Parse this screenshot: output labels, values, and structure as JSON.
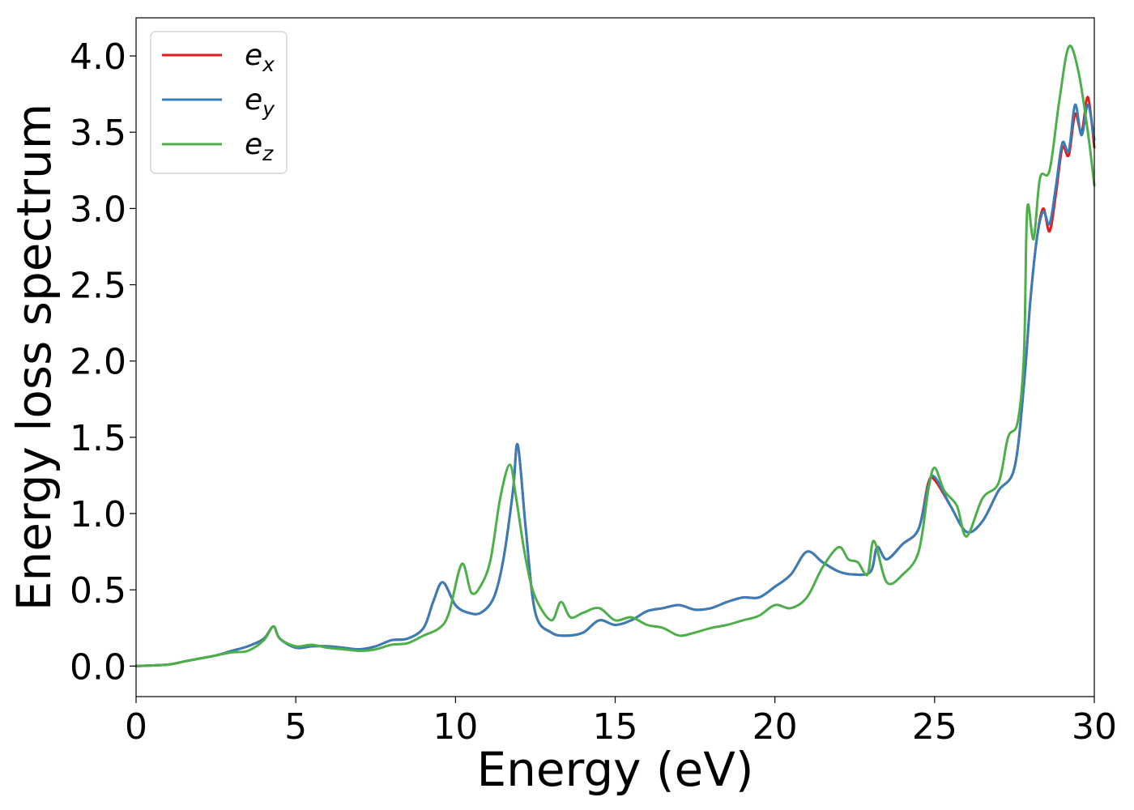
{
  "chart_data": {
    "type": "line",
    "xlabel": "Energy (eV)",
    "ylabel": "Energy loss spectrum",
    "xlim": [
      0,
      30
    ],
    "ylim": [
      -0.2,
      4.25
    ],
    "xticks": [
      0,
      5,
      10,
      15,
      20,
      25,
      30
    ],
    "xtick_labels": [
      "0",
      "5",
      "10",
      "15",
      "20",
      "25",
      "30"
    ],
    "yticks": [
      0.0,
      0.5,
      1.0,
      1.5,
      2.0,
      2.5,
      3.0,
      3.5,
      4.0
    ],
    "ytick_labels": [
      "0.0",
      "0.5",
      "1.0",
      "1.5",
      "2.0",
      "2.5",
      "3.0",
      "3.5",
      "4.0"
    ],
    "grid": false,
    "legend_position": "top-left",
    "series": [
      {
        "name": "e",
        "subscript": "x",
        "color": "#e41a1c",
        "x": [
          0,
          1,
          1.5,
          2,
          2.5,
          3,
          3.5,
          4,
          4.3,
          4.5,
          5,
          5.5,
          6,
          6.5,
          7,
          7.5,
          8,
          8.5,
          9,
          9.3,
          9.6,
          10,
          10.4,
          10.8,
          11.2,
          11.5,
          11.8,
          11.95,
          12.2,
          12.5,
          13,
          13.5,
          14,
          14.5,
          15,
          15.5,
          16,
          16.5,
          17,
          17.5,
          18,
          18.5,
          19,
          19.5,
          20,
          20.5,
          21,
          21.5,
          22,
          22.5,
          23,
          23.2,
          23.5,
          24,
          24.5,
          24.8,
          25,
          25.5,
          26,
          26.5,
          27,
          27.5,
          27.8,
          28,
          28.2,
          28.4,
          28.6,
          28.8,
          29,
          29.2,
          29.4,
          29.6,
          29.8,
          30
        ],
        "y": [
          0.0,
          0.01,
          0.03,
          0.05,
          0.07,
          0.1,
          0.13,
          0.18,
          0.26,
          0.18,
          0.12,
          0.13,
          0.13,
          0.12,
          0.11,
          0.13,
          0.17,
          0.18,
          0.25,
          0.42,
          0.55,
          0.4,
          0.35,
          0.35,
          0.45,
          0.7,
          1.15,
          1.45,
          0.9,
          0.35,
          0.22,
          0.2,
          0.22,
          0.3,
          0.27,
          0.3,
          0.36,
          0.38,
          0.4,
          0.37,
          0.38,
          0.42,
          0.45,
          0.45,
          0.52,
          0.6,
          0.75,
          0.68,
          0.62,
          0.6,
          0.62,
          0.78,
          0.7,
          0.8,
          0.9,
          1.2,
          1.22,
          1.05,
          0.88,
          0.95,
          1.15,
          1.3,
          1.85,
          2.4,
          2.8,
          3.0,
          2.85,
          3.1,
          3.4,
          3.35,
          3.62,
          3.5,
          3.73,
          3.4
        ]
      },
      {
        "name": "e",
        "subscript": "y",
        "color": "#377eb8",
        "x": [
          0,
          1,
          1.5,
          2,
          2.5,
          3,
          3.5,
          4,
          4.3,
          4.5,
          5,
          5.5,
          6,
          6.5,
          7,
          7.5,
          8,
          8.5,
          9,
          9.3,
          9.6,
          10,
          10.4,
          10.8,
          11.2,
          11.5,
          11.8,
          11.95,
          12.2,
          12.5,
          13,
          13.5,
          14,
          14.5,
          15,
          15.5,
          16,
          16.5,
          17,
          17.5,
          18,
          18.5,
          19,
          19.5,
          20,
          20.5,
          21,
          21.5,
          22,
          22.5,
          23,
          23.2,
          23.5,
          24,
          24.5,
          24.8,
          25,
          25.5,
          26,
          26.5,
          27,
          27.5,
          27.8,
          28,
          28.2,
          28.4,
          28.6,
          28.8,
          29,
          29.2,
          29.4,
          29.6,
          29.8,
          30
        ],
        "y": [
          0.0,
          0.01,
          0.03,
          0.05,
          0.07,
          0.1,
          0.13,
          0.18,
          0.26,
          0.18,
          0.12,
          0.13,
          0.13,
          0.12,
          0.11,
          0.13,
          0.17,
          0.18,
          0.25,
          0.42,
          0.55,
          0.4,
          0.35,
          0.35,
          0.45,
          0.7,
          1.15,
          1.45,
          0.9,
          0.35,
          0.22,
          0.2,
          0.22,
          0.3,
          0.27,
          0.3,
          0.36,
          0.38,
          0.4,
          0.37,
          0.38,
          0.42,
          0.45,
          0.45,
          0.52,
          0.6,
          0.75,
          0.68,
          0.62,
          0.6,
          0.62,
          0.78,
          0.7,
          0.8,
          0.9,
          1.18,
          1.24,
          1.05,
          0.88,
          0.95,
          1.15,
          1.3,
          1.85,
          2.4,
          2.8,
          2.98,
          2.9,
          3.15,
          3.43,
          3.38,
          3.68,
          3.48,
          3.68,
          3.45
        ]
      },
      {
        "name": "e",
        "subscript": "z",
        "color": "#4daf4a",
        "x": [
          0,
          1,
          1.5,
          2,
          2.5,
          3,
          3.5,
          4,
          4.3,
          4.5,
          5,
          5.5,
          6,
          6.5,
          7,
          7.5,
          8,
          8.5,
          9,
          9.5,
          9.8,
          10.2,
          10.5,
          10.8,
          11.1,
          11.4,
          11.7,
          11.9,
          12.2,
          12.5,
          13,
          13.3,
          13.6,
          14,
          14.5,
          15,
          15.5,
          16,
          16.5,
          17,
          17.5,
          18,
          18.5,
          19,
          19.5,
          20,
          20.5,
          21,
          21.5,
          22,
          22.3,
          22.6,
          22.9,
          23.1,
          23.5,
          24,
          24.5,
          24.8,
          25,
          25.3,
          25.7,
          26,
          26.5,
          27,
          27.3,
          27.6,
          27.8,
          27.9,
          28.1,
          28.3,
          28.6,
          28.9,
          29.2,
          29.5,
          29.8,
          30
        ],
        "y": [
          0.0,
          0.01,
          0.03,
          0.05,
          0.07,
          0.09,
          0.1,
          0.17,
          0.26,
          0.18,
          0.13,
          0.14,
          0.12,
          0.11,
          0.1,
          0.11,
          0.14,
          0.15,
          0.2,
          0.25,
          0.35,
          0.67,
          0.48,
          0.53,
          0.7,
          1.1,
          1.32,
          1.1,
          0.7,
          0.45,
          0.3,
          0.42,
          0.32,
          0.35,
          0.38,
          0.3,
          0.32,
          0.27,
          0.25,
          0.2,
          0.22,
          0.25,
          0.27,
          0.3,
          0.33,
          0.4,
          0.38,
          0.45,
          0.65,
          0.78,
          0.7,
          0.68,
          0.6,
          0.82,
          0.55,
          0.6,
          0.75,
          1.15,
          1.3,
          1.15,
          1.05,
          0.85,
          1.1,
          1.2,
          1.5,
          1.6,
          2.05,
          3.0,
          2.8,
          3.2,
          3.25,
          3.7,
          4.06,
          3.9,
          3.5,
          3.15
        ]
      }
    ]
  }
}
